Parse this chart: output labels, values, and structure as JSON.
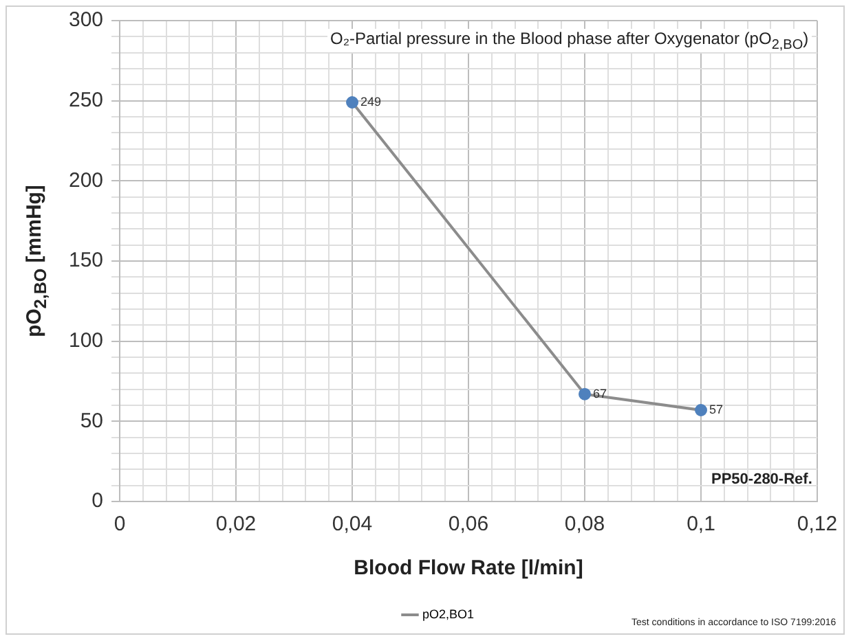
{
  "chart_data": {
    "type": "line",
    "title": "O₂-Partial pressure in the Blood phase after Oxygenator (pO$_{2,BO}$)",
    "xlabel": "Blood Flow Rate [l/min]",
    "ylabel": "pO$_{2,BO}$ [mmHg]",
    "x": [
      0.04,
      0.08,
      0.1
    ],
    "series": [
      {
        "name": "pO2,BO1",
        "color": "#8c8c8c",
        "colors": [
          "#4f81bd",
          "#4f81bd",
          "#4f81bd"
        ],
        "values": [
          249,
          67,
          57
        ]
      }
    ],
    "xlim": [
      0,
      0.12
    ],
    "xticks": [
      0,
      {
        "value": 0.004,
        "label": null
      },
      {
        "value": 0.008,
        "label": null
      },
      {
        "value": 0.012,
        "label": null
      },
      {
        "value": 0.016,
        "label": null
      },
      {
        "value": 0.02,
        "label": "0,02"
      },
      {
        "value": 0.024,
        "label": null
      },
      {
        "value": 0.028,
        "label": null
      },
      {
        "value": 0.032,
        "label": null
      },
      {
        "value": 0.036,
        "label": null
      },
      {
        "value": 0.04,
        "label": "0,04"
      },
      {
        "value": 0.044,
        "label": null
      },
      {
        "value": 0.048,
        "label": null
      },
      {
        "value": 0.052,
        "label": null
      },
      {
        "value": 0.056,
        "label": null
      },
      {
        "value": 0.06,
        "label": "0,06"
      },
      {
        "value": 0.064,
        "label": null
      },
      {
        "value": 0.068,
        "label": null
      },
      {
        "value": 0.072,
        "label": null
      },
      {
        "value": 0.076,
        "label": null
      },
      {
        "value": 0.08,
        "label": "0,08"
      },
      {
        "value": 0.084,
        "label": null
      },
      {
        "value": 0.088,
        "label": null
      },
      {
        "value": 0.092,
        "label": null
      },
      {
        "value": 0.096,
        "label": null
      },
      {
        "value": 0.1,
        "label": "0,1"
      },
      {
        "value": 0.104,
        "label": null
      },
      {
        "value": 0.108,
        "label": null
      },
      {
        "value": 0.112,
        "label": null
      },
      {
        "value": 0.116,
        "label": null
      },
      {
        "value": 0.12,
        "label": "0,12"
      }
    ],
    "ylim": [
      0,
      300
    ],
    "yticks": [
      0,
      {
        "value": 10,
        "label": null
      },
      {
        "value": 20,
        "label": null
      },
      {
        "value": 30,
        "label": null
      },
      {
        "value": 40,
        "label": null
      },
      50,
      {
        "value": 60,
        "label": null
      },
      {
        "value": 70,
        "label": null
      },
      {
        "value": 80,
        "label": null
      },
      {
        "value": 90,
        "label": null
      },
      100,
      {
        "value": 110,
        "label": null
      },
      {
        "value": 120,
        "label": null
      },
      {
        "value": 130,
        "label": null
      },
      {
        "value": 140,
        "label": null
      },
      150,
      {
        "value": 160,
        "label": null
      },
      {
        "value": 170,
        "label": null
      },
      {
        "value": 180,
        "label": null
      },
      {
        "value": 190,
        "label": null
      },
      200,
      {
        "value": 210,
        "label": null
      },
      {
        "value": 220,
        "label": null
      },
      {
        "value": 230,
        "label": null
      },
      {
        "value": 240,
        "label": null
      },
      250,
      {
        "value": 260,
        "label": null
      },
      {
        "value": 270,
        "label": null
      },
      {
        "value": 280,
        "label": null
      },
      {
        "value": 290,
        "label": null
      },
      300
    ],
    "grid": true,
    "legend": "bottom",
    "marker": "circle",
    "line_style": "solid",
    "data_labels": true,
    "annotations": [
      "PP50-280-Ref.",
      "Test conditions in accordance to ISO 7199:2016"
    ]
  }
}
